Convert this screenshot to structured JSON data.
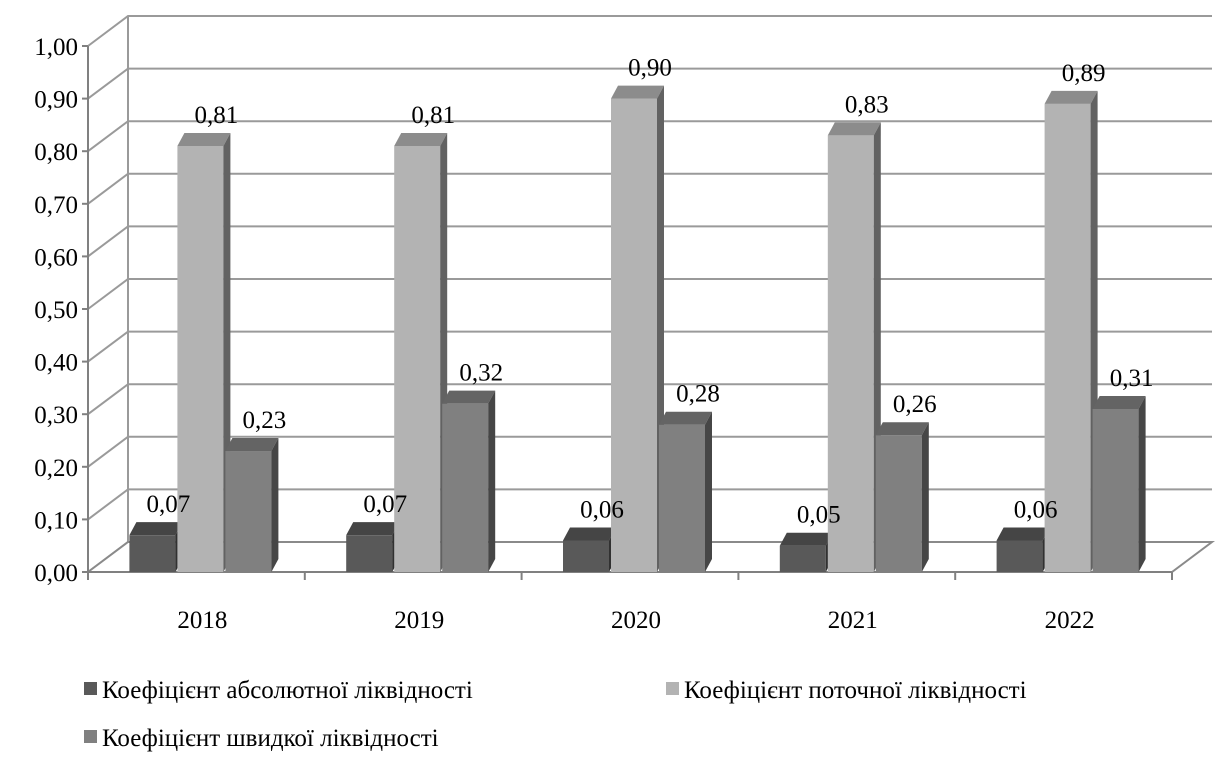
{
  "chart_data": {
    "type": "bar",
    "categories": [
      "2018",
      "2019",
      "2020",
      "2021",
      "2022"
    ],
    "series": [
      {
        "name": "Коефіцієнт абсолютної ліквідності",
        "values": [
          0.07,
          0.07,
          0.06,
          0.05,
          0.06
        ],
        "labels": [
          "0,07",
          "0,07",
          "0,06",
          "0,05",
          "0,06"
        ],
        "color": "#595959"
      },
      {
        "name": "Коефіцієнт поточної ліквідності",
        "values": [
          0.81,
          0.81,
          0.9,
          0.83,
          0.89
        ],
        "labels": [
          "0,81",
          "0,81",
          "0,90",
          "0,83",
          "0,89"
        ],
        "color": "#b3b3b3"
      },
      {
        "name": "Коефіцієнт швидкої ліквідності",
        "values": [
          0.23,
          0.32,
          0.28,
          0.26,
          0.31
        ],
        "labels": [
          "0,23",
          "0,32",
          "0,28",
          "0,26",
          "0,31"
        ],
        "color": "#808080"
      }
    ],
    "yticks": [
      "0,00",
      "0,10",
      "0,20",
      "0,30",
      "0,40",
      "0,50",
      "0,60",
      "0,70",
      "0,80",
      "0,90",
      "1,00"
    ],
    "ylim": [
      0,
      1.0
    ],
    "grid": true,
    "style": "3d-clustered-column",
    "legend_position": "bottom"
  }
}
